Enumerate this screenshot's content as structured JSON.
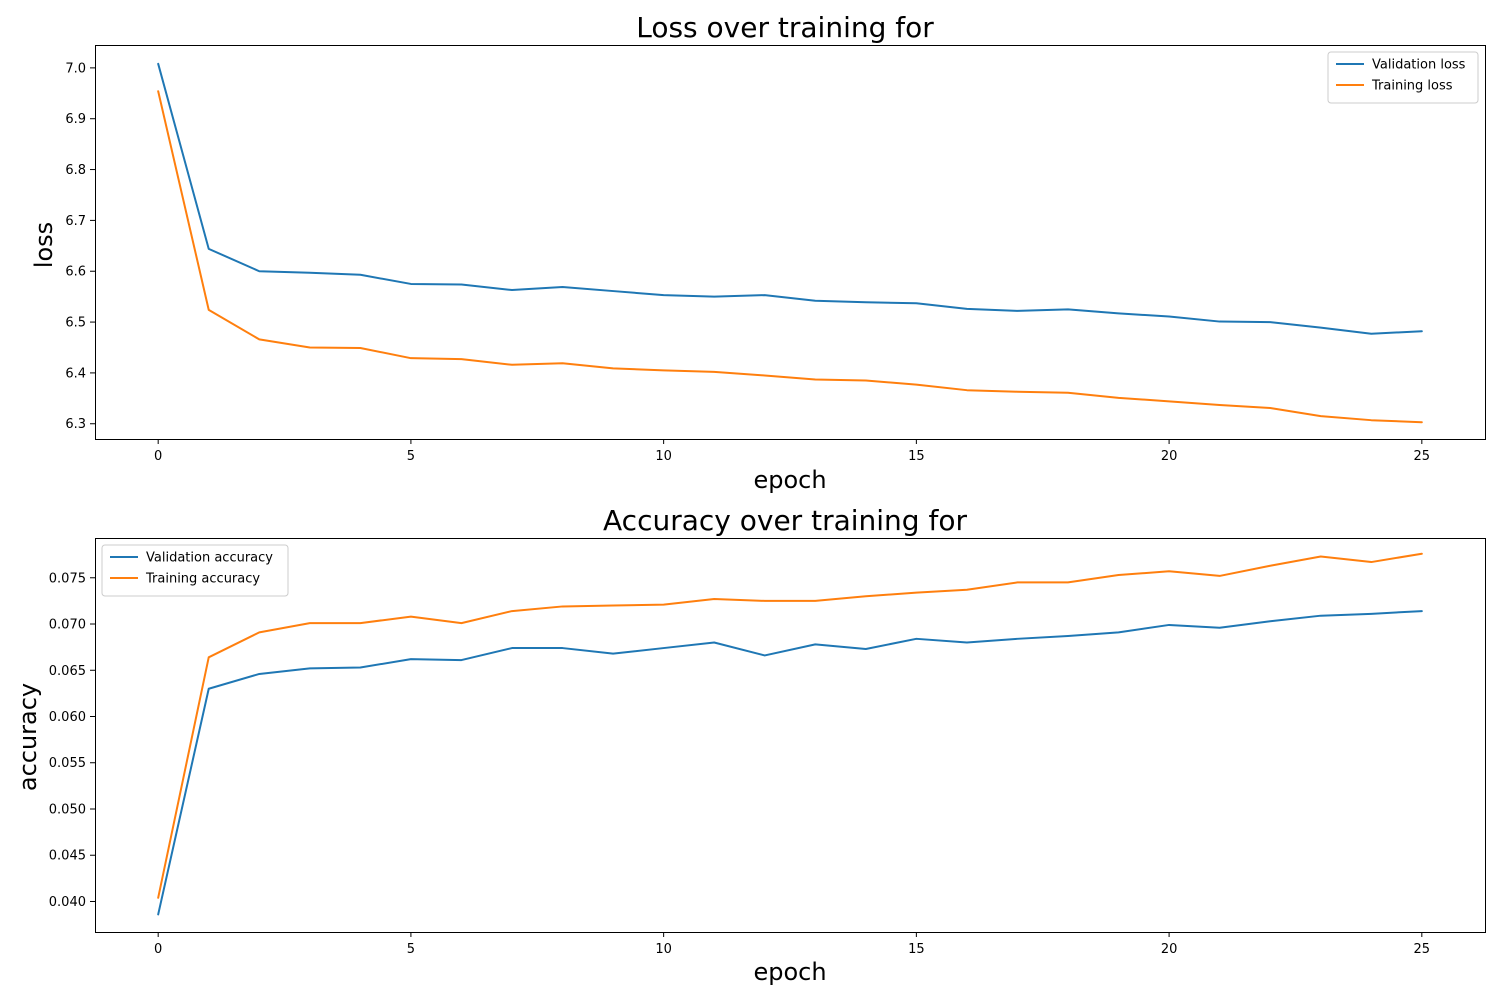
{
  "chart_data": [
    {
      "type": "line",
      "title": "Loss over training for",
      "xlabel": "epoch",
      "ylabel": "loss",
      "xlim": [
        -1.25,
        26.25
      ],
      "ylim": [
        6.27,
        7.045
      ],
      "xticks": [
        0,
        5,
        10,
        15,
        20,
        25
      ],
      "yticks": [
        6.3,
        6.4,
        6.5,
        6.6,
        6.7,
        6.8,
        6.9,
        7.0
      ],
      "ytick_decimals": 1,
      "grid": false,
      "legend_position": "top-right",
      "x": [
        0,
        1,
        2,
        3,
        4,
        5,
        6,
        7,
        8,
        9,
        10,
        11,
        12,
        13,
        14,
        15,
        16,
        17,
        18,
        19,
        20,
        21,
        22,
        23,
        24,
        25
      ],
      "series": [
        {
          "name": "Validation loss",
          "color": "#1f77b4",
          "values": [
            7.008,
            6.644,
            6.6,
            6.597,
            6.593,
            6.575,
            6.574,
            6.563,
            6.569,
            6.561,
            6.553,
            6.55,
            6.553,
            6.542,
            6.539,
            6.537,
            6.526,
            6.522,
            6.525,
            6.517,
            6.511,
            6.501,
            6.5,
            6.489,
            6.477,
            6.482
          ]
        },
        {
          "name": "Training loss",
          "color": "#ff7f0e",
          "values": [
            6.954,
            6.524,
            6.466,
            6.45,
            6.449,
            6.429,
            6.427,
            6.416,
            6.419,
            6.409,
            6.405,
            6.402,
            6.395,
            6.387,
            6.385,
            6.377,
            6.366,
            6.363,
            6.361,
            6.351,
            6.344,
            6.337,
            6.331,
            6.315,
            6.307,
            6.303
          ]
        }
      ]
    },
    {
      "type": "line",
      "title": "Accuracy over training for",
      "xlabel": "epoch",
      "ylabel": "accuracy",
      "xlim": [
        -1.25,
        26.25
      ],
      "ylim": [
        0.0367,
        0.0793
      ],
      "xticks": [
        0,
        5,
        10,
        15,
        20,
        25
      ],
      "yticks": [
        0.04,
        0.045,
        0.05,
        0.055,
        0.06,
        0.065,
        0.07,
        0.075
      ],
      "ytick_decimals": 3,
      "grid": false,
      "legend_position": "top-left",
      "x": [
        0,
        1,
        2,
        3,
        4,
        5,
        6,
        7,
        8,
        9,
        10,
        11,
        12,
        13,
        14,
        15,
        16,
        17,
        18,
        19,
        20,
        21,
        22,
        23,
        24,
        25
      ],
      "series": [
        {
          "name": "Validation accuracy",
          "color": "#1f77b4",
          "values": [
            0.0386,
            0.063,
            0.0646,
            0.0652,
            0.0653,
            0.0662,
            0.0661,
            0.0674,
            0.0674,
            0.0668,
            0.0674,
            0.068,
            0.0666,
            0.0678,
            0.0673,
            0.0684,
            0.068,
            0.0684,
            0.0687,
            0.0691,
            0.0699,
            0.0696,
            0.0703,
            0.0709,
            0.0711,
            0.0714
          ]
        },
        {
          "name": "Training accuracy",
          "color": "#ff7f0e",
          "values": [
            0.0404,
            0.0664,
            0.0691,
            0.0701,
            0.0701,
            0.0708,
            0.0701,
            0.0714,
            0.0719,
            0.072,
            0.0721,
            0.0727,
            0.0725,
            0.0725,
            0.073,
            0.0734,
            0.0737,
            0.0745,
            0.0745,
            0.0753,
            0.0757,
            0.0752,
            0.0763,
            0.0773,
            0.0767,
            0.0776
          ]
        }
      ]
    }
  ]
}
